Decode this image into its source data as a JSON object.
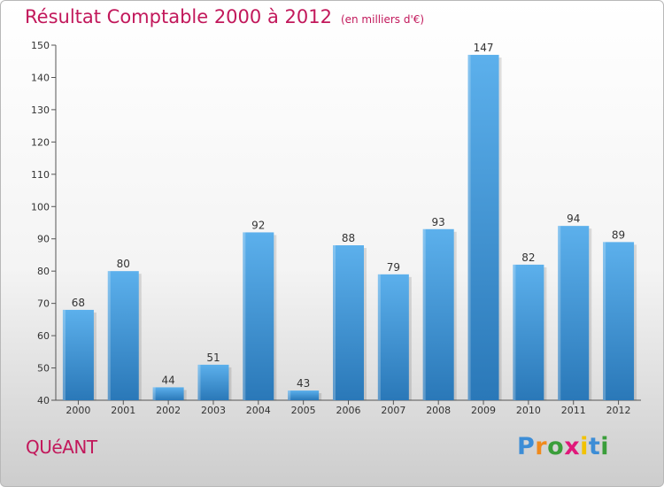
{
  "header": {
    "title": "Résultat Comptable 2000 à 2012",
    "unit": "(en milliers d'€)"
  },
  "commune": "QUéANT",
  "logo": {
    "letters": [
      "P",
      "r",
      "o",
      "x",
      "i",
      "t",
      "i"
    ],
    "colors": [
      "#3c8dd6",
      "#f08a1c",
      "#3a9e3a",
      "#e0187a",
      "#f2c200",
      "#3c8dd6",
      "#3a9e3a"
    ]
  },
  "colors": {
    "bar": "#3d95dc",
    "bar_light": "#5aaeea",
    "bar_dark": "#2a78b8",
    "title": "#c2185b"
  },
  "chart_data": {
    "type": "bar",
    "title": "Résultat Comptable 2000 à 2012",
    "ylabel": "(en milliers d'€)",
    "xlabel": "",
    "categories": [
      "2000",
      "2001",
      "2002",
      "2003",
      "2004",
      "2005",
      "2006",
      "2007",
      "2008",
      "2009",
      "2010",
      "2011",
      "2012"
    ],
    "values": [
      68,
      80,
      44,
      51,
      92,
      43,
      88,
      79,
      93,
      147,
      82,
      94,
      89
    ],
    "ylim": [
      40,
      150
    ],
    "yticks": [
      40,
      50,
      60,
      70,
      80,
      90,
      100,
      110,
      120,
      130,
      140,
      150
    ],
    "grid": false
  }
}
